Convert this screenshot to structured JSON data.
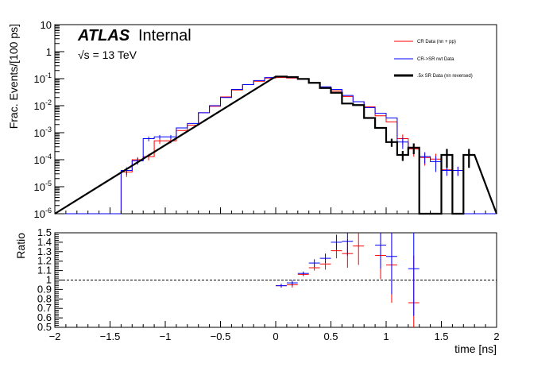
{
  "labels": {
    "atlas": "ATLAS",
    "internal": "Internal",
    "energy": "√s = 13 TeV",
    "ylabel_top": "Frac. Events/[100 ps]",
    "ylabel_bottom": "Ratio",
    "xlabel": "time [ns]"
  },
  "colors": {
    "red": "#ff0000",
    "blue": "#0000ff",
    "black": "#000000"
  },
  "chart_data": [
    {
      "type": "line",
      "title": "",
      "xlabel": "time [ns]",
      "ylabel": "Frac. Events/[100 ps]",
      "yscale": "log",
      "xlim": [
        -2,
        2
      ],
      "ylim": [
        1e-06,
        10
      ],
      "bin_width": 0.1,
      "x_ticks": [
        "−2",
        "−1.5",
        "−1",
        "−0.5",
        "0",
        "0.5",
        "1",
        "1.5",
        "2"
      ],
      "y_ticks": [
        "10^{-6}",
        "10^{-5}",
        "10^{-4}",
        "10^{-3}",
        "10^{-2}",
        "10^{-1}",
        "1",
        "10"
      ],
      "legend_position": "top-right",
      "series": [
        {
          "name": "CR Data (nn + pp)",
          "color": "red",
          "x_low": [
            -1.5,
            -1.4,
            -1.3,
            -1.2,
            -1.1,
            -1.0,
            -0.9,
            -0.8,
            -0.7,
            -0.6,
            -0.5,
            -0.4,
            -0.3,
            -0.2,
            -0.1,
            0.0,
            0.1,
            0.2,
            0.3,
            0.4,
            0.5,
            0.6,
            0.7,
            0.8,
            0.9,
            1.0,
            1.1,
            1.2,
            1.3,
            1.4,
            1.5,
            1.6,
            1.7
          ],
          "values": [
            1e-06,
            3.5e-05,
            0.0001,
            0.00013,
            0.0005,
            0.0005,
            0.0012,
            0.0019,
            0.0055,
            0.0095,
            0.021,
            0.038,
            0.06,
            0.08,
            0.105,
            0.11,
            0.105,
            0.095,
            0.07,
            0.045,
            0.035,
            0.022,
            0.014,
            0.009,
            0.0042,
            0.0025,
            0.0006,
            0.00025,
            0.00012,
            0.000105,
            4.2e-05,
            4e-05,
            1e-06
          ],
          "errors": [
            0,
            1.2e-05,
            2.5e-05,
            3.5e-05,
            0.00012,
            0.0001,
            0,
            0,
            0,
            0,
            0,
            0,
            0,
            0,
            0,
            0,
            0,
            0,
            0,
            0,
            0,
            0,
            0,
            0,
            0,
            0,
            0.00025,
            0.00012,
            6e-05,
            6e-05,
            1.5e-05,
            1.5e-05,
            0
          ]
        },
        {
          "name": "CR->SR rwt Data",
          "color": "blue",
          "x_low": [
            -1.5,
            -1.4,
            -1.3,
            -1.2,
            -1.1,
            -1.0,
            -0.9,
            -0.8,
            -0.7,
            -0.6,
            -0.5,
            -0.4,
            -0.3,
            -0.2,
            -0.1,
            0.0,
            0.1,
            0.2,
            0.3,
            0.4,
            0.5,
            0.6,
            0.7,
            0.8,
            0.9,
            1.0,
            1.1,
            1.2,
            1.3,
            1.4,
            1.5,
            1.6,
            1.7
          ],
          "values": [
            1e-06,
            4e-05,
            9e-05,
            0.0006,
            0.0007,
            0.0007,
            0.0015,
            0.0022,
            0.0055,
            0.01,
            0.02,
            0.04,
            0.06,
            0.085,
            0.11,
            0.12,
            0.11,
            0.095,
            0.07,
            0.05,
            0.04,
            0.024,
            0.014,
            0.0085,
            0.0052,
            0.0035,
            0.00045,
            0.00028,
            0.00013,
            8.5e-05,
            4e-05,
            4e-05,
            1e-06
          ],
          "errors": [
            0,
            1.2e-05,
            2.5e-05,
            0.00012,
            0.00012,
            0.00012,
            0,
            0,
            0,
            0,
            0,
            0,
            0,
            0,
            0,
            0,
            0,
            0,
            0,
            0,
            0,
            0,
            0,
            0,
            0,
            0,
            0.0002,
            0.00012,
            6e-05,
            5e-05,
            1.5e-05,
            1.5e-05,
            0
          ]
        },
        {
          "name": ".5x SR Data (nn reversed)",
          "color": "black",
          "x_low": [
            0.0,
            0.1,
            0.2,
            0.3,
            0.4,
            0.5,
            0.6,
            0.7,
            0.8,
            0.9,
            1.0,
            1.1,
            1.2,
            1.3,
            1.4,
            1.5,
            1.6,
            1.7
          ],
          "values": [
            0.12,
            0.115,
            0.098,
            0.07,
            0.045,
            0.03,
            0.012,
            0.0105,
            0.0035,
            0.0015,
            0.00045,
            0.00015,
            0.00028,
            1e-06,
            1e-06,
            0.00015,
            1e-06,
            0.00015
          ],
          "errors": [
            0,
            0,
            0,
            0,
            0,
            0,
            0,
            0,
            0,
            0,
            0.00015,
            6e-05,
            0.00012,
            0,
            0,
            0.0001,
            0,
            0.0001
          ]
        }
      ]
    },
    {
      "type": "scatter",
      "xlabel": "time [ns]",
      "ylabel": "Ratio",
      "xlim": [
        -2,
        2
      ],
      "ylim": [
        0.5,
        1.5
      ],
      "reference_line": 1.0,
      "x_ticks": [
        "−2",
        "−1.5",
        "−1",
        "−0.5",
        "0",
        "0.5",
        "1",
        "1.5",
        "2"
      ],
      "y_ticks": [
        "0.5",
        "0.6",
        "0.7",
        "0.8",
        "0.9",
        "1",
        "1.1",
        "1.2",
        "1.3",
        "1.4",
        "1.5"
      ],
      "series": [
        {
          "name": "CR Data (nn + pp)",
          "color": "red",
          "x": [
            0.05,
            0.15,
            0.25,
            0.35,
            0.45,
            0.55,
            0.65,
            0.75,
            0.95,
            1.05,
            1.25
          ],
          "y": [
            0.94,
            0.95,
            1.06,
            1.13,
            1.17,
            1.31,
            1.28,
            1.36,
            1.26,
            1.16,
            0.76
          ],
          "yerr": [
            0.02,
            0.03,
            0.02,
            0.03,
            0.06,
            0.08,
            0.15,
            0.2,
            0.25,
            0.4,
            0.5
          ]
        },
        {
          "name": "CR->SR rwt Data",
          "color": "blue",
          "x": [
            0.05,
            0.15,
            0.25,
            0.35,
            0.45,
            0.55,
            0.65,
            0.95,
            1.05,
            1.25
          ],
          "y": [
            0.94,
            0.97,
            1.07,
            1.18,
            1.23,
            1.4,
            1.41,
            1.37,
            1.25,
            1.12
          ],
          "yerr": [
            0.02,
            0.03,
            0.02,
            0.04,
            0.05,
            0.08,
            0.15,
            0.25,
            0.4,
            0.5
          ]
        }
      ]
    }
  ]
}
